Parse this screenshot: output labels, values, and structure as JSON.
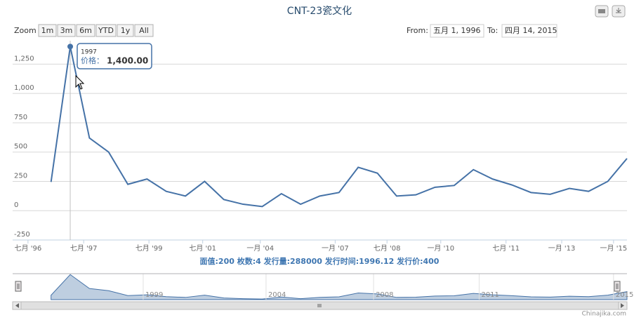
{
  "chart_data": {
    "type": "line",
    "title": "CNT-23瓷文化",
    "subtitle": "面值:200 枚数:4 发行量:288000 发行时间:1996.12 发行价:400",
    "color": "#4572a7",
    "x": [
      0,
      1,
      2,
      3,
      4,
      5,
      6,
      7,
      8,
      9,
      10,
      11,
      12,
      13,
      14,
      15,
      16,
      17,
      18,
      19,
      20,
      21,
      22,
      23,
      24,
      25,
      26,
      27,
      28,
      29,
      30
    ],
    "values": [
      245,
      1400,
      620,
      500,
      225,
      270,
      165,
      125,
      250,
      95,
      55,
      35,
      145,
      55,
      125,
      155,
      370,
      320,
      125,
      135,
      200,
      215,
      350,
      270,
      220,
      155,
      140,
      190,
      165,
      250,
      445
    ],
    "xlim": [
      -2,
      30
    ],
    "xticks": [
      {
        "value": -1.2,
        "label": "七月 '96"
      },
      {
        "value": 1.7,
        "label": "七月 '97"
      },
      {
        "value": 5.1,
        "label": "七月 '99"
      },
      {
        "value": 7.9,
        "label": "七月 '01"
      },
      {
        "value": 10.9,
        "label": "一月 '04"
      },
      {
        "value": 14.8,
        "label": "一月 '07"
      },
      {
        "value": 17.5,
        "label": "七月 '08"
      },
      {
        "value": 20.3,
        "label": "一月 '10"
      },
      {
        "value": 23.7,
        "label": "七月 '11"
      },
      {
        "value": 26.6,
        "label": "一月 '13"
      },
      {
        "value": 29.3,
        "label": "一月 '15"
      }
    ],
    "ylim": [
      -250,
      1450
    ],
    "yticks": [
      -250,
      0,
      250,
      500,
      750,
      {
        "value": 1000,
        "label": "1,000"
      },
      {
        "value": 1250,
        "label": "1,250"
      }
    ],
    "grid": true,
    "tooltip": {
      "title": "1997",
      "label": "价格：",
      "value_label": "1,400.00"
    },
    "navigator_ticks": [
      {
        "value": 4.8,
        "label": "1999"
      },
      {
        "value": 11.2,
        "label": "2004"
      },
      {
        "value": 16.8,
        "label": "2008"
      },
      {
        "value": 22.3,
        "label": "2011"
      },
      {
        "value": 29.3,
        "label": "2015"
      }
    ]
  },
  "range_selector": {
    "label": "Zoom",
    "buttons": [
      "1m",
      "3m",
      "6m",
      "YTD",
      "1y",
      "All"
    ],
    "from_label": "From:",
    "from": "五月 1, 1996",
    "to_label": "To:",
    "to": "四月 14, 2015"
  },
  "credits": "Chinajika.com"
}
